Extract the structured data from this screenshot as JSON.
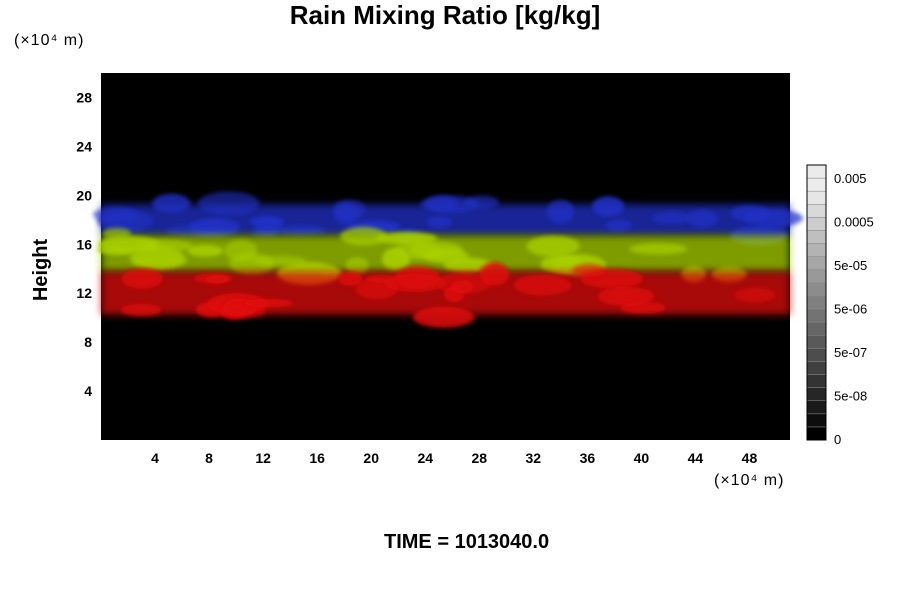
{
  "chart_data": {
    "type": "heatmap",
    "title": "Rain Mixing Ratio [kg/kg]",
    "xlabel": "",
    "ylabel": "Height",
    "x_unit": "(×10⁴ m)",
    "y_unit": "(×10⁴ m)",
    "x_ticks": [
      4,
      8,
      12,
      16,
      20,
      24,
      28,
      32,
      36,
      40,
      44,
      48
    ],
    "y_ticks": [
      4,
      8,
      12,
      16,
      20,
      24,
      28
    ],
    "xlim": [
      0,
      51
    ],
    "ylim": [
      0,
      30
    ],
    "background_color": "#000000",
    "colorbar": {
      "scale": "log",
      "tick_labels": [
        "0.005",
        "0.0005",
        "5e-05",
        "5e-06",
        "5e-07",
        "5e-08",
        "0"
      ],
      "levels": 21
    },
    "layers": [
      {
        "name": "upper",
        "color": "#2030c8",
        "y_range": [
          16.5,
          19.5
        ]
      },
      {
        "name": "middle",
        "color": "#a8d000",
        "y_range": [
          13.5,
          17
        ]
      },
      {
        "name": "lower",
        "color": "#e01010",
        "y_range": [
          10,
          14
        ]
      }
    ],
    "footer": "TIME = 1013040.0"
  }
}
